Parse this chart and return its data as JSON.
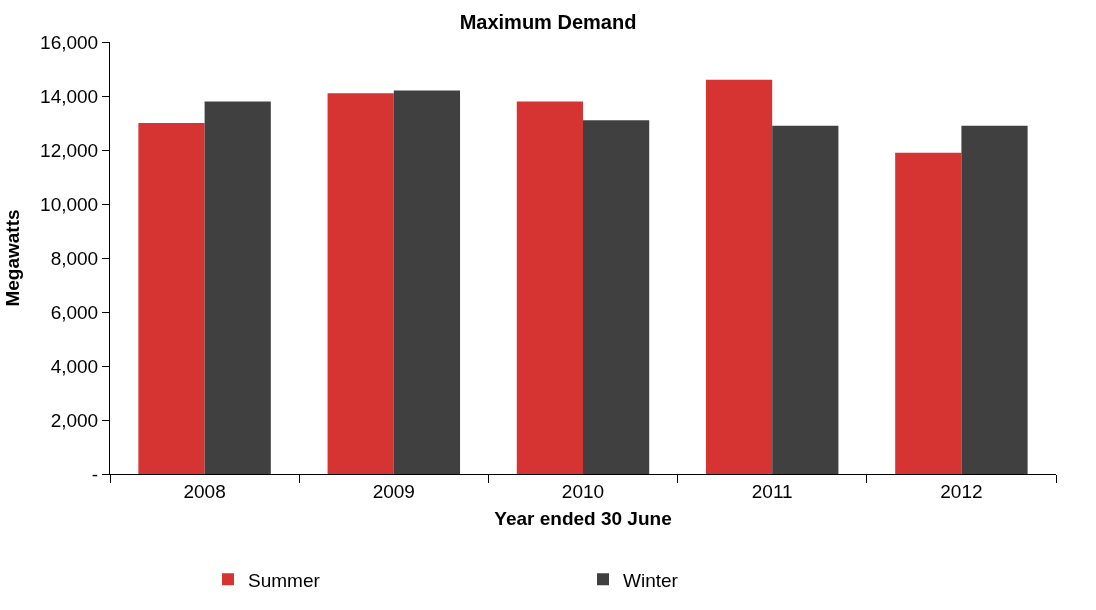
{
  "chart_data": {
    "type": "bar",
    "title": "Maximum Demand",
    "xlabel": "Year ended 30 June",
    "ylabel": "Megawatts",
    "categories": [
      "2008",
      "2009",
      "2010",
      "2011",
      "2012"
    ],
    "series": [
      {
        "name": "Summer",
        "color": "#d63333",
        "values": [
          13000,
          14100,
          13800,
          14600,
          11900
        ]
      },
      {
        "name": "Winter",
        "color": "#404040",
        "values": [
          13800,
          14200,
          13100,
          12900,
          12900
        ]
      }
    ],
    "ylim": [
      0,
      16000
    ],
    "yticks": [
      {
        "value": 0,
        "label": "-"
      },
      {
        "value": 2000,
        "label": "2,000"
      },
      {
        "value": 4000,
        "label": "4,000"
      },
      {
        "value": 6000,
        "label": "6,000"
      },
      {
        "value": 8000,
        "label": "8,000"
      },
      {
        "value": 10000,
        "label": "10,000"
      },
      {
        "value": 12000,
        "label": "12,000"
      },
      {
        "value": 14000,
        "label": "14,000"
      },
      {
        "value": 16000,
        "label": "16,000"
      }
    ],
    "legend": "bottom"
  }
}
